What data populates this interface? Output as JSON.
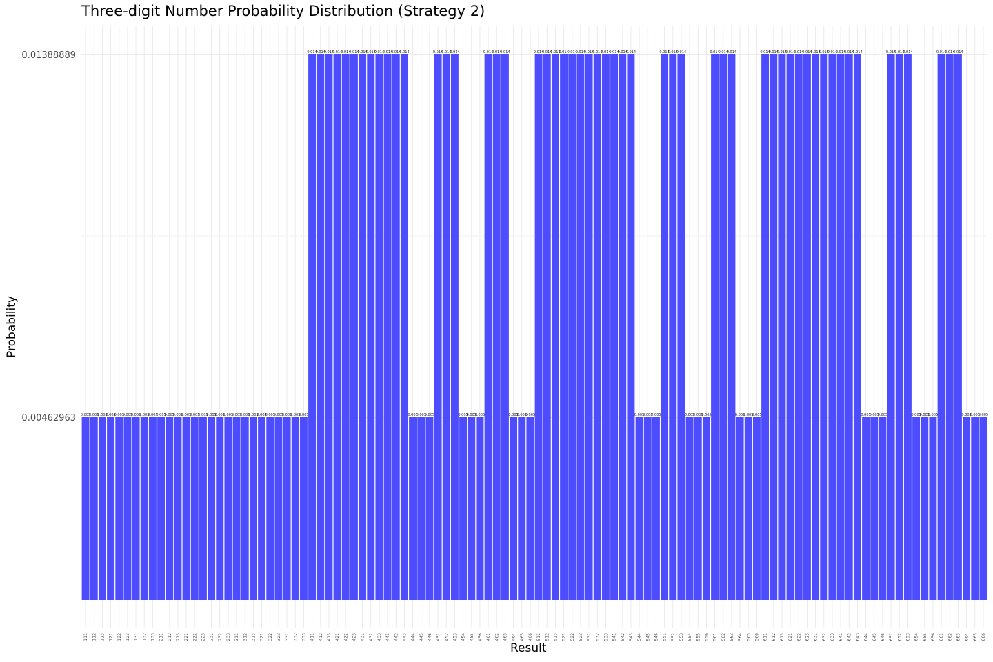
{
  "chart_data": {
    "type": "bar",
    "title": "Three-digit Number Probability Distribution (Strategy 2)",
    "xlabel": "Result",
    "ylabel": "Probability",
    "ylim": [
      0,
      0.0145
    ],
    "y_ticks": [
      0.00462963,
      0.01388889
    ],
    "y_tick_labels": [
      "0.00462963",
      "0.01388889"
    ],
    "bar_color": "#4d4dff",
    "grid": true,
    "categories": [
      "111",
      "112",
      "113",
      "121",
      "122",
      "123",
      "131",
      "132",
      "133",
      "211",
      "212",
      "213",
      "221",
      "222",
      "223",
      "231",
      "232",
      "233",
      "311",
      "312",
      "313",
      "321",
      "322",
      "323",
      "331",
      "332",
      "333",
      "411",
      "412",
      "413",
      "421",
      "422",
      "423",
      "431",
      "432",
      "433",
      "441",
      "442",
      "443",
      "444",
      "445",
      "446",
      "451",
      "452",
      "453",
      "454",
      "455",
      "456",
      "461",
      "462",
      "463",
      "464",
      "465",
      "466",
      "511",
      "512",
      "513",
      "521",
      "522",
      "523",
      "531",
      "532",
      "533",
      "541",
      "542",
      "543",
      "544",
      "545",
      "546",
      "551",
      "552",
      "553",
      "554",
      "555",
      "556",
      "561",
      "562",
      "563",
      "564",
      "565",
      "566",
      "611",
      "612",
      "613",
      "621",
      "622",
      "623",
      "631",
      "632",
      "633",
      "641",
      "642",
      "643",
      "644",
      "645",
      "646",
      "651",
      "652",
      "653",
      "654",
      "655",
      "656",
      "661",
      "662",
      "663",
      "664",
      "665",
      "666"
    ],
    "values": [
      0.00462963,
      0.00462963,
      0.00462963,
      0.00462963,
      0.00462963,
      0.00462963,
      0.00462963,
      0.00462963,
      0.00462963,
      0.00462963,
      0.00462963,
      0.00462963,
      0.00462963,
      0.00462963,
      0.00462963,
      0.00462963,
      0.00462963,
      0.00462963,
      0.00462963,
      0.00462963,
      0.00462963,
      0.00462963,
      0.00462963,
      0.00462963,
      0.00462963,
      0.00462963,
      0.00462963,
      0.01388889,
      0.01388889,
      0.01388889,
      0.01388889,
      0.01388889,
      0.01388889,
      0.01388889,
      0.01388889,
      0.01388889,
      0.01388889,
      0.01388889,
      0.01388889,
      0.00462963,
      0.00462963,
      0.00462963,
      0.01388889,
      0.01388889,
      0.01388889,
      0.00462963,
      0.00462963,
      0.00462963,
      0.01388889,
      0.01388889,
      0.01388889,
      0.00462963,
      0.00462963,
      0.00462963,
      0.01388889,
      0.01388889,
      0.01388889,
      0.01388889,
      0.01388889,
      0.01388889,
      0.01388889,
      0.01388889,
      0.01388889,
      0.01388889,
      0.01388889,
      0.01388889,
      0.00462963,
      0.00462963,
      0.00462963,
      0.01388889,
      0.01388889,
      0.01388889,
      0.00462963,
      0.00462963,
      0.00462963,
      0.01388889,
      0.01388889,
      0.01388889,
      0.00462963,
      0.00462963,
      0.00462963,
      0.01388889,
      0.01388889,
      0.01388889,
      0.01388889,
      0.01388889,
      0.01388889,
      0.01388889,
      0.01388889,
      0.01388889,
      0.01388889,
      0.01388889,
      0.01388889,
      0.00462963,
      0.00462963,
      0.00462963,
      0.01388889,
      0.01388889,
      0.01388889,
      0.00462963,
      0.00462963,
      0.00462963,
      0.01388889,
      0.01388889,
      0.01388889,
      0.00462963,
      0.00462963,
      0.00462963
    ],
    "data_labels": [
      "0.005",
      "0.005",
      "0.005",
      "0.005",
      "0.005",
      "0.005",
      "0.005",
      "0.005",
      "0.005",
      "0.005",
      "0.005",
      "0.005",
      "0.005",
      "0.005",
      "0.005",
      "0.005",
      "0.005",
      "0.005",
      "0.005",
      "0.005",
      "0.005",
      "0.005",
      "0.005",
      "0.005",
      "0.005",
      "0.005",
      "0.005",
      "0.014",
      "0.014",
      "0.014",
      "0.014",
      "0.014",
      "0.014",
      "0.014",
      "0.014",
      "0.014",
      "0.014",
      "0.014",
      "0.014",
      "0.005",
      "0.005",
      "0.005",
      "0.014",
      "0.014",
      "0.014",
      "0.005",
      "0.005",
      "0.005",
      "0.014",
      "0.014",
      "0.014",
      "0.005",
      "0.005",
      "0.005",
      "0.014",
      "0.014",
      "0.014",
      "0.014",
      "0.014",
      "0.014",
      "0.014",
      "0.014",
      "0.014",
      "0.014",
      "0.014",
      "0.014",
      "0.005",
      "0.005",
      "0.005",
      "0.014",
      "0.014",
      "0.014",
      "0.005",
      "0.005",
      "0.005",
      "0.014",
      "0.014",
      "0.014",
      "0.005",
      "0.005",
      "0.005",
      "0.014",
      "0.014",
      "0.014",
      "0.014",
      "0.014",
      "0.014",
      "0.014",
      "0.014",
      "0.014",
      "0.014",
      "0.014",
      "0.014",
      "0.005",
      "0.005",
      "0.005",
      "0.014",
      "0.014",
      "0.014",
      "0.005",
      "0.005",
      "0.005",
      "0.014",
      "0.014",
      "0.014",
      "0.005",
      "0.005",
      "0.005"
    ]
  }
}
